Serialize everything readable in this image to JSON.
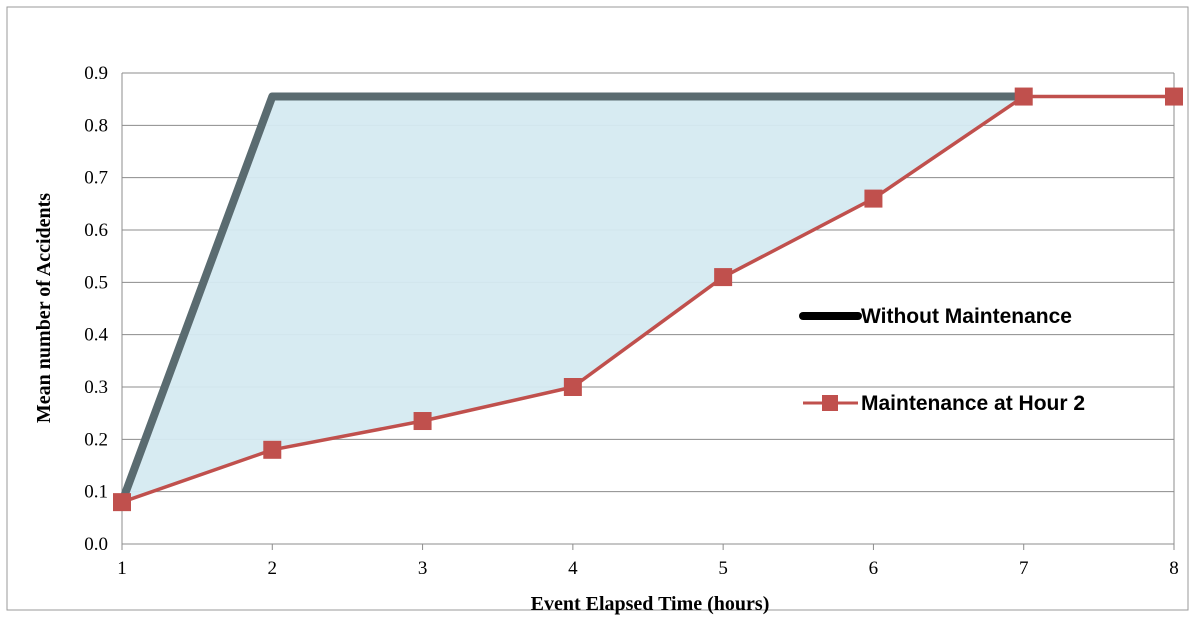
{
  "chart_data": {
    "type": "line",
    "title": "",
    "xlabel": "Event Elapsed Time (hours)",
    "ylabel": "Mean number of Accidents",
    "xlim": [
      1,
      8
    ],
    "ylim": [
      0,
      0.9
    ],
    "x_ticks": [
      "1",
      "2",
      "3",
      "4",
      "5",
      "6",
      "7",
      "8"
    ],
    "y_ticks": [
      "0.0",
      "0.1",
      "0.2",
      "0.3",
      "0.4",
      "0.5",
      "0.6",
      "0.7",
      "0.8",
      "0.9"
    ],
    "grid": true,
    "legend_position": "right",
    "shaded_region": {
      "description": "area between the two series",
      "color": "#d5eaf1"
    },
    "series": [
      {
        "name": "Without Maintenance",
        "color": "#5a6b70",
        "legend_color": "#000000",
        "marker": "none",
        "x": [
          1,
          2,
          3,
          4,
          5,
          6,
          7
        ],
        "values": [
          0.08,
          0.855,
          0.855,
          0.855,
          0.855,
          0.855,
          0.855
        ]
      },
      {
        "name": "Maintenance at Hour 2",
        "color": "#c0504d",
        "marker": "square",
        "x": [
          1,
          2,
          3,
          4,
          5,
          6,
          7,
          8
        ],
        "values": [
          0.08,
          0.18,
          0.235,
          0.3,
          0.51,
          0.66,
          0.855,
          0.855
        ]
      }
    ]
  }
}
